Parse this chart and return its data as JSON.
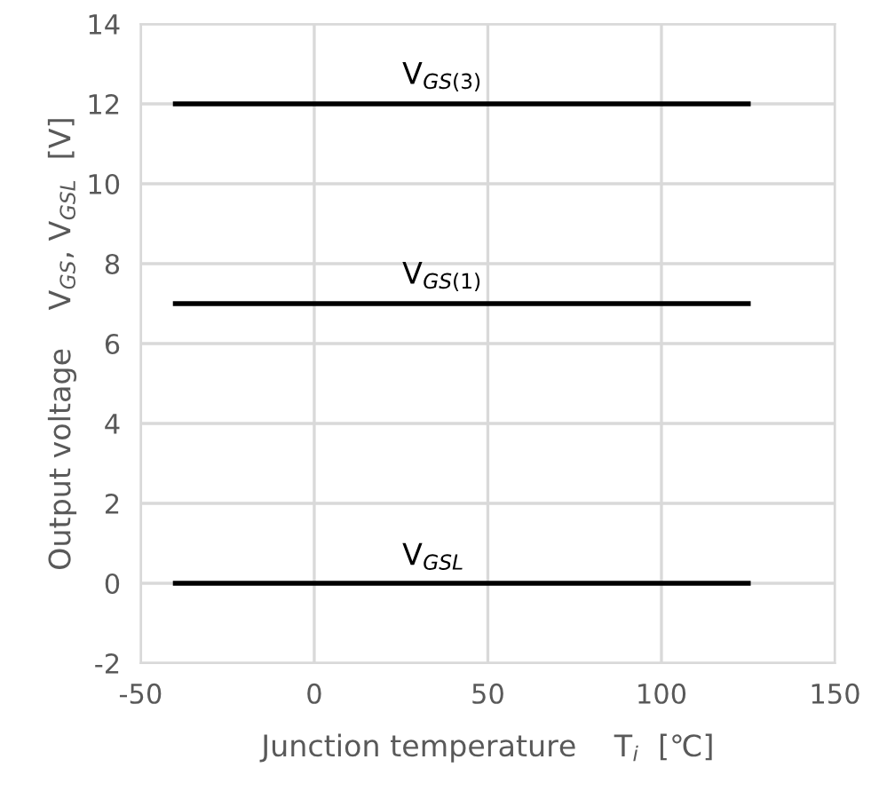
{
  "chart_data": {
    "type": "line",
    "xlabel": "Junction temperature    T$_{i}$  [℃]",
    "ylabel": "Output voltage    V$_{GS}$, V$_{GSL}$  [V]",
    "x": [
      -40,
      125
    ],
    "series": [
      {
        "name": "V$_{GS(3)}$",
        "color": "#000000",
        "values": [
          12,
          12
        ]
      },
      {
        "name": "V$_{GS(1)}$",
        "color": "#000000",
        "values": [
          7,
          7
        ]
      },
      {
        "name": "V$_{GSL}$",
        "color": "#000000",
        "values": [
          0,
          0
        ]
      }
    ],
    "xlim": [
      -50,
      150
    ],
    "xticks": [
      -50,
      0,
      50,
      100,
      150
    ],
    "ylim": [
      -2,
      14
    ],
    "yticks": [
      -2,
      0,
      2,
      4,
      6,
      8,
      10,
      12,
      14
    ],
    "grid": true,
    "legend": false,
    "marker": "none",
    "line_style": "solid"
  }
}
